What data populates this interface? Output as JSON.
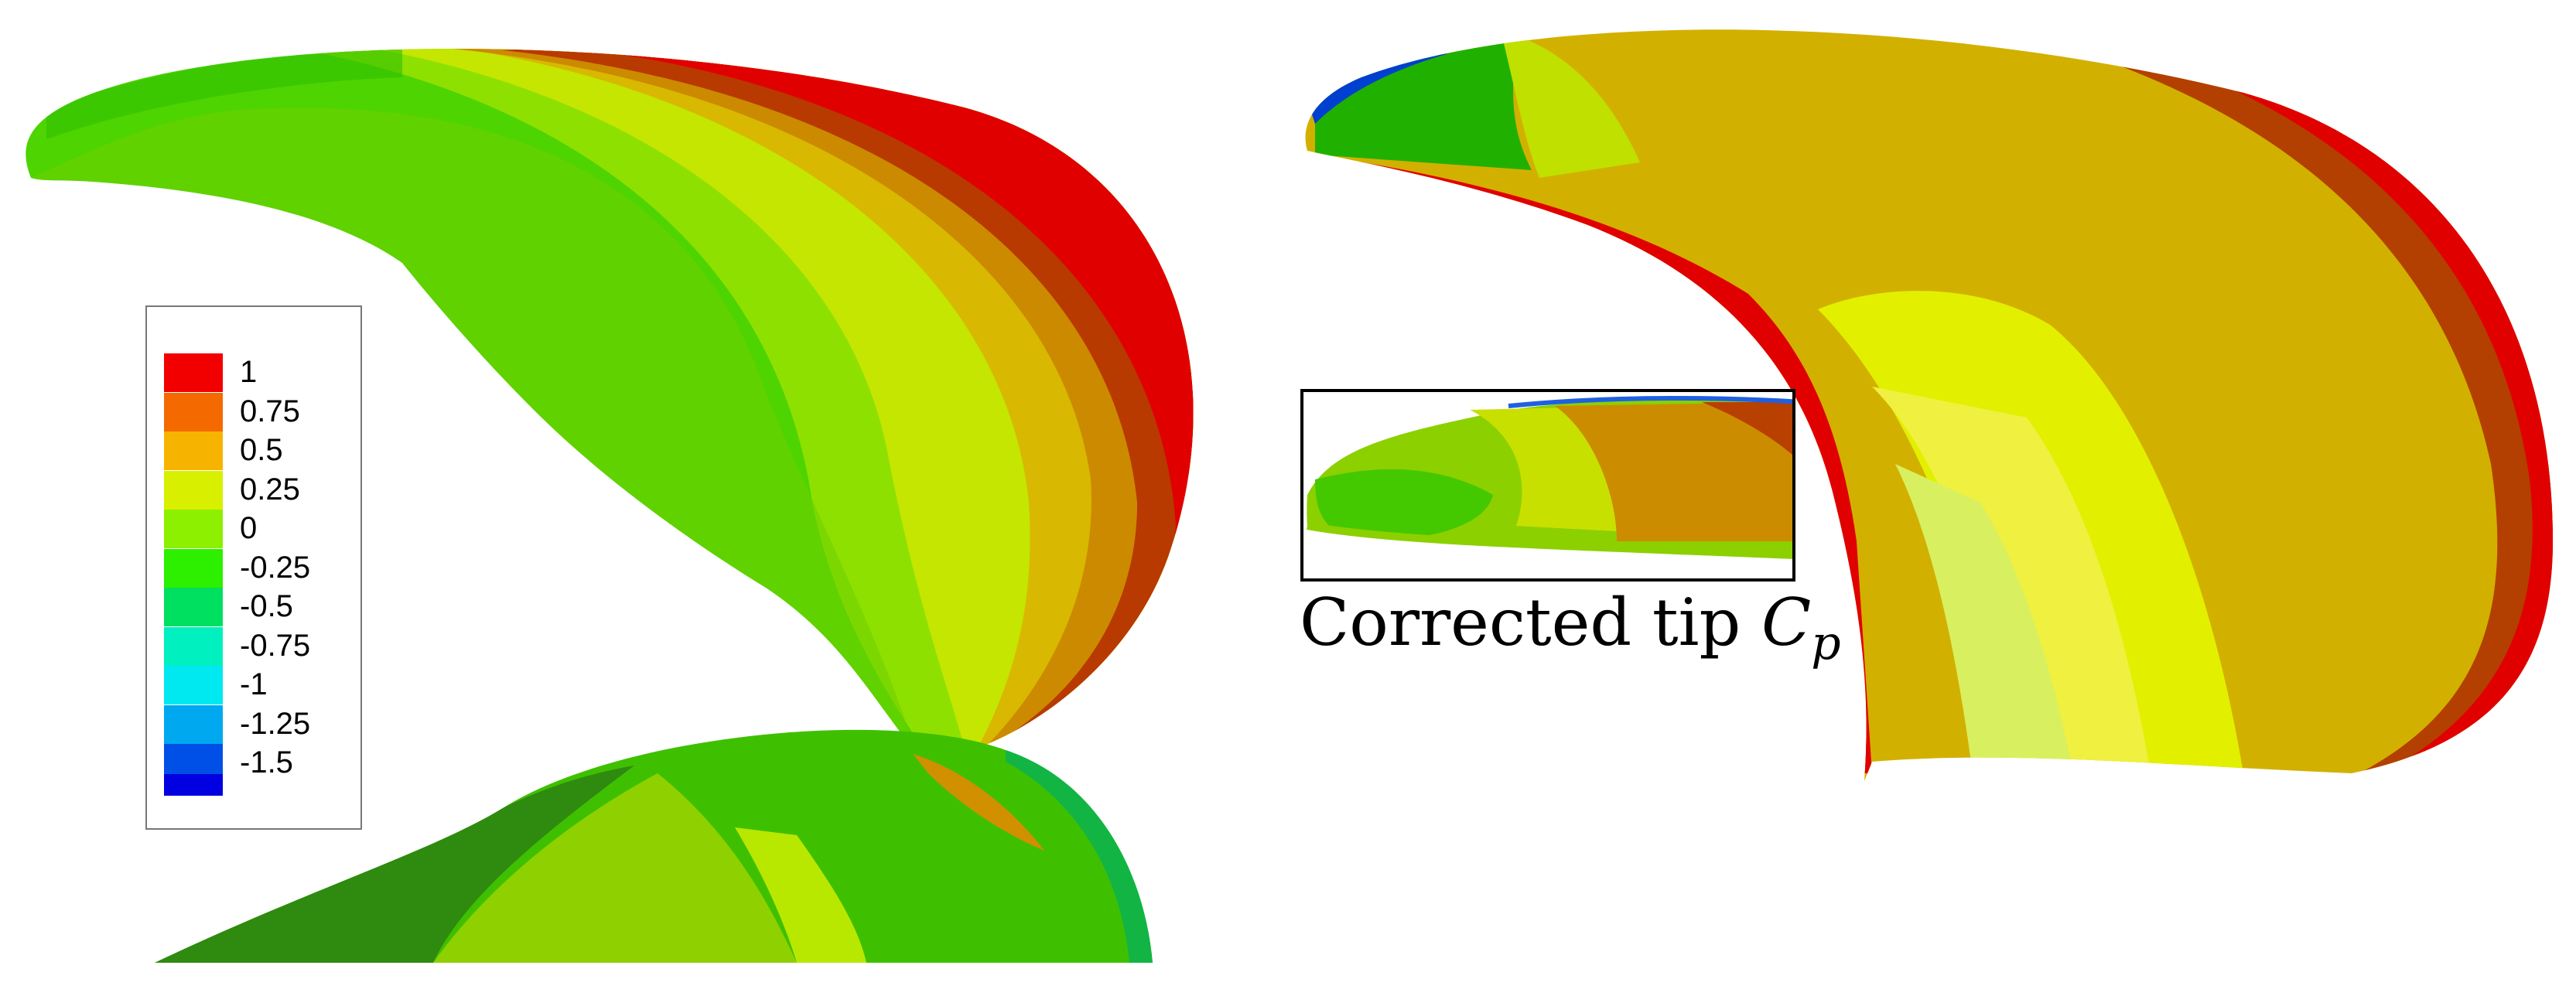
{
  "legend": {
    "entries": [
      {
        "label": "1",
        "color": "#f20000"
      },
      {
        "label": "0.75",
        "color": "#f46a00"
      },
      {
        "label": "0.5",
        "color": "#f6b400"
      },
      {
        "label": "0.25",
        "color": "#d8f000"
      },
      {
        "label": "0",
        "color": "#8cf000"
      },
      {
        "label": "-0.25",
        "color": "#2cf000"
      },
      {
        "label": "-0.5",
        "color": "#00e060"
      },
      {
        "label": "-0.75",
        "color": "#00f0c0"
      },
      {
        "label": "-1",
        "color": "#00e8f0"
      },
      {
        "label": "-1.25",
        "color": "#00a8f0"
      },
      {
        "label": "-1.5",
        "color": "#0050e8"
      }
    ],
    "bottom_color": "#0000e0"
  },
  "inset": {
    "caption_text": "Corrected tip ",
    "caption_symbol": "C",
    "caption_subscript": "p"
  }
}
